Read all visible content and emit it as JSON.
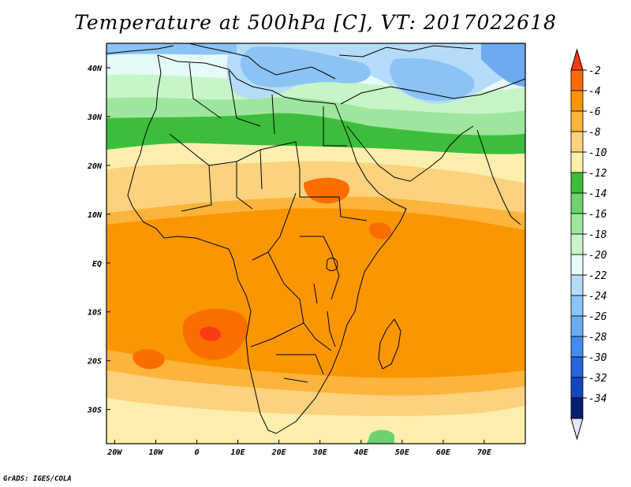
{
  "title": "Temperature at 500hPa [C], VT: 2017022618",
  "credit": "GrADS: IGES/COLA",
  "map": {
    "region": "Africa",
    "variable": "Temperature at 500hPa",
    "units": "C",
    "valid_time": "2017022618",
    "lon_range": [
      -22,
      80
    ],
    "lat_range": [
      -37,
      45
    ],
    "x_ticks": [
      {
        "value": -20,
        "label": "20W"
      },
      {
        "value": -10,
        "label": "10W"
      },
      {
        "value": 0,
        "label": "0"
      },
      {
        "value": 10,
        "label": "10E"
      },
      {
        "value": 20,
        "label": "20E"
      },
      {
        "value": 30,
        "label": "30E"
      },
      {
        "value": 40,
        "label": "40E"
      },
      {
        "value": 50,
        "label": "50E"
      },
      {
        "value": 60,
        "label": "60E"
      },
      {
        "value": 70,
        "label": "70E"
      }
    ],
    "y_ticks": [
      {
        "value": 40,
        "label": "40N"
      },
      {
        "value": 30,
        "label": "30N"
      },
      {
        "value": 20,
        "label": "20N"
      },
      {
        "value": 10,
        "label": "10N"
      },
      {
        "value": 0,
        "label": "EQ"
      },
      {
        "value": -10,
        "label": "10S"
      },
      {
        "value": -20,
        "label": "20S"
      },
      {
        "value": -30,
        "label": "30S"
      }
    ]
  },
  "colorbar": {
    "levels": [
      "-2",
      "-4",
      "-6",
      "-8",
      "-10",
      "-12",
      "-14",
      "-16",
      "-18",
      "-20",
      "-22",
      "-24",
      "-26",
      "-28",
      "-30",
      "-32",
      "-34"
    ],
    "colors": [
      "#fa3c14",
      "#fa6e00",
      "#fa9600",
      "#fcb43c",
      "#fcd27e",
      "#fcefae",
      "#3cbe3c",
      "#6ed26e",
      "#9ee69e",
      "#c8f5c8",
      "#e6fafa",
      "#b4dcfa",
      "#8cc3f5",
      "#6eaaf0",
      "#468cf0",
      "#2864dc",
      "#1446be",
      "#0a1e6e"
    ],
    "top_arrow_color": "#fa3c14",
    "bottom_arrow_color": "#e6e6fa"
  }
}
